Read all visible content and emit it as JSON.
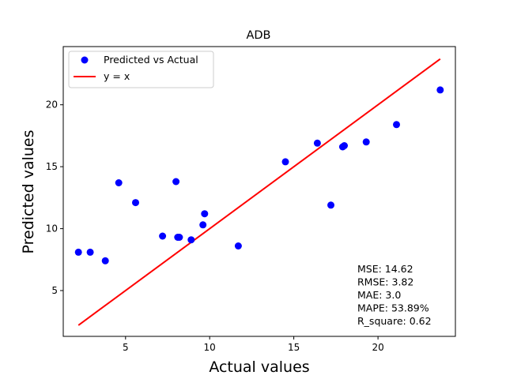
{
  "chart_data": {
    "type": "scatter",
    "title": "ADB",
    "xlabel": "Actual values",
    "ylabel": "Predicted values",
    "xlim": [
      1.3,
      24.6
    ],
    "ylim": [
      1.3,
      24.7
    ],
    "xticks": [
      5,
      10,
      15,
      20
    ],
    "yticks": [
      5,
      10,
      15,
      20
    ],
    "grid": false,
    "legend_position": "top-left",
    "series": [
      {
        "name": "Predicted vs Actual",
        "type": "scatter",
        "color": "#0000ff",
        "points": [
          [
            2.2,
            8.1
          ],
          [
            2.9,
            8.1
          ],
          [
            3.8,
            7.4
          ],
          [
            4.6,
            13.7
          ],
          [
            5.6,
            12.1
          ],
          [
            7.2,
            9.4
          ],
          [
            8.0,
            13.8
          ],
          [
            8.1,
            9.3
          ],
          [
            8.2,
            9.3
          ],
          [
            8.9,
            9.1
          ],
          [
            9.6,
            10.3
          ],
          [
            9.7,
            11.2
          ],
          [
            11.7,
            8.6
          ],
          [
            14.5,
            15.4
          ],
          [
            16.4,
            16.9
          ],
          [
            17.2,
            11.9
          ],
          [
            17.9,
            16.6
          ],
          [
            18.0,
            16.7
          ],
          [
            19.3,
            17.0
          ],
          [
            21.1,
            18.4
          ],
          [
            23.7,
            21.2
          ]
        ]
      },
      {
        "name": "y = x",
        "type": "line",
        "color": "#ff0000",
        "points": [
          [
            2.2,
            2.2
          ],
          [
            23.7,
            23.7
          ]
        ]
      }
    ],
    "annotations": [
      "MSE: 14.62",
      "RMSE: 3.82",
      "MAE: 3.0",
      "MAPE: 53.89%",
      "R_square: 0.62"
    ]
  }
}
